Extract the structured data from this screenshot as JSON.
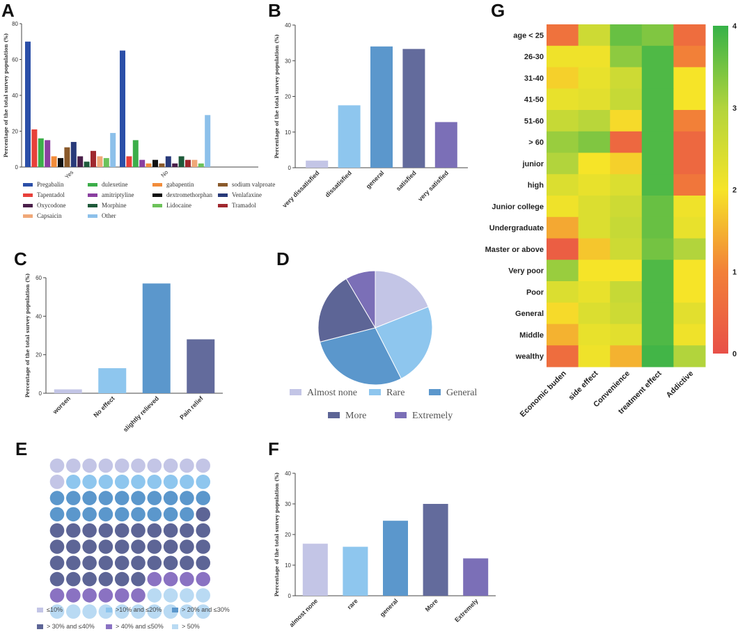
{
  "panels": {
    "A": "A",
    "B": "B",
    "C": "C",
    "D": "D",
    "E": "E",
    "F": "F",
    "G": "G"
  },
  "chart_data": [
    {
      "id": "A",
      "type": "bar",
      "ylabel": "Percentage of the total survey population (%)",
      "ylim": [
        0,
        80
      ],
      "yticks": [
        0,
        20,
        40,
        60,
        80
      ],
      "categories": [
        "Yes",
        "No"
      ],
      "series": [
        {
          "name": "Pregabalin",
          "color": "#2b4fa8",
          "values": [
            70,
            65
          ]
        },
        {
          "name": "Tapentadol",
          "color": "#e8403a",
          "values": [
            21,
            6
          ]
        },
        {
          "name": "dulexetine",
          "color": "#3cae4a",
          "values": [
            16,
            15
          ]
        },
        {
          "name": "amitriptyline",
          "color": "#8a3fa0",
          "values": [
            15,
            4
          ]
        },
        {
          "name": "gabapentin",
          "color": "#f28c3a",
          "values": [
            6,
            2
          ]
        },
        {
          "name": "dextromethorphan",
          "color": "#111111",
          "values": [
            5,
            4
          ]
        },
        {
          "name": "sodium valproate",
          "color": "#8a5a2b",
          "values": [
            11,
            2
          ]
        },
        {
          "name": "Venlafaxine",
          "color": "#283a7a",
          "values": [
            14,
            6
          ]
        },
        {
          "name": "Oxycodone",
          "color": "#4a1f4a",
          "values": [
            6,
            2
          ]
        },
        {
          "name": "Morphine",
          "color": "#1e5a3a",
          "values": [
            3,
            6
          ]
        },
        {
          "name": "Tramadol",
          "color": "#a0282e",
          "values": [
            9,
            4
          ]
        },
        {
          "name": "Capsaicin",
          "color": "#f0a878",
          "values": [
            6,
            4
          ]
        },
        {
          "name": "Lidocaine",
          "color": "#6cc25a",
          "values": [
            5,
            2
          ]
        },
        {
          "name": "Other",
          "color": "#8cc0ea",
          "values": [
            19,
            29
          ]
        }
      ],
      "legend_order": [
        "Pregabalin",
        "dulexetine",
        "gabapentin",
        "sodium valproate",
        "Tapentadol",
        "amitriptyline",
        "dextromethorphan",
        "Venlafaxine",
        "Oxycodone",
        "Morphine",
        "Lidocaine",
        "Tramadol",
        "Capsaicin",
        "Other"
      ]
    },
    {
      "id": "B",
      "type": "bar",
      "ylabel": "Percentage of the total survey population (%)",
      "ylim": [
        0,
        40
      ],
      "yticks": [
        0,
        10,
        20,
        30,
        40
      ],
      "categories": [
        "very dissatisfied",
        "dissatisfied",
        "general",
        "satisfied",
        "very satisfied"
      ],
      "values": [
        2,
        17.5,
        34,
        33.3,
        12.8
      ],
      "colors": [
        "#c3c5e6",
        "#8ec6ee",
        "#5b97cc",
        "#636b9c",
        "#7b6fb7"
      ]
    },
    {
      "id": "C",
      "type": "bar",
      "ylabel": "Percentage of the total survey population (%)",
      "ylim": [
        0,
        60
      ],
      "yticks": [
        0,
        20,
        40,
        60
      ],
      "categories": [
        "worsen",
        "No effect",
        "slightly relieved",
        "Pain relief"
      ],
      "values": [
        2,
        13,
        57,
        28
      ],
      "colors": [
        "#c3c5e6",
        "#8ec6ee",
        "#5b97cc",
        "#636b9c"
      ]
    },
    {
      "id": "D",
      "type": "pie",
      "labels": [
        "Almost none",
        "Rare",
        "General",
        "More",
        "Extremely"
      ],
      "values": [
        19,
        23.5,
        28.5,
        20.5,
        8.5
      ],
      "colors": [
        "#c3c5e6",
        "#8ec6ee",
        "#5b97cc",
        "#5d6596",
        "#7b6fb7"
      ]
    },
    {
      "id": "E",
      "type": "waffle",
      "labels": [
        "≤10%",
        ">10% and ≤20%",
        "> 20% and ≤30%",
        "> 30% and ≤40%",
        "> 40% and ≤50%",
        "> 50%"
      ],
      "values": [
        11,
        9,
        19,
        37,
        10,
        14
      ],
      "colors": [
        "#c3c5e6",
        "#8ec6ee",
        "#5b97cc",
        "#5d6596",
        "#8a72c2",
        "#b9daf3"
      ]
    },
    {
      "id": "F",
      "type": "bar",
      "ylabel": "Percentage of the total survey population (%)",
      "ylim": [
        0,
        40
      ],
      "yticks": [
        0,
        10,
        20,
        30,
        40
      ],
      "categories": [
        "almost none",
        "rare",
        "general",
        "More",
        "Extremely"
      ],
      "values": [
        17,
        16,
        24.5,
        30,
        12.2
      ],
      "colors": [
        "#c3c5e6",
        "#8ec6ee",
        "#5b97cc",
        "#636b9c",
        "#7b6fb7"
      ]
    },
    {
      "id": "G",
      "type": "heatmap",
      "rows": [
        "age < 25",
        "26-30",
        "31-40",
        "41-50",
        "51-60",
        "> 60",
        "junior",
        "high",
        "Junior college",
        "Undergraduate",
        "Master or above",
        "Very poor",
        "Poor",
        "General",
        "Middle",
        "wealthy"
      ],
      "columns": [
        "Economic buden",
        "side effect",
        "Convenience",
        "treatment effect",
        "Addictive"
      ],
      "values": [
        [
          0.7,
          2.6,
          3.6,
          3.4,
          0.6
        ],
        [
          2.1,
          2.1,
          3.3,
          3.8,
          1.0
        ],
        [
          1.8,
          2.2,
          2.6,
          3.8,
          2.0
        ],
        [
          2.2,
          2.3,
          2.7,
          3.8,
          2.0
        ],
        [
          2.7,
          2.9,
          1.9,
          3.8,
          1.0
        ],
        [
          3.2,
          3.4,
          0.5,
          3.8,
          0.5
        ],
        [
          3.0,
          2.0,
          1.8,
          3.8,
          0.5
        ],
        [
          2.4,
          2.2,
          2.4,
          3.8,
          0.8
        ],
        [
          2.1,
          2.4,
          2.6,
          3.6,
          2.1
        ],
        [
          1.4,
          2.4,
          2.7,
          3.6,
          2.2
        ],
        [
          0.3,
          1.7,
          2.6,
          3.5,
          3.0
        ],
        [
          3.2,
          2.0,
          2.0,
          3.8,
          2.0
        ],
        [
          2.4,
          2.2,
          2.7,
          3.8,
          2.0
        ],
        [
          1.9,
          2.4,
          2.6,
          3.8,
          2.3
        ],
        [
          1.5,
          2.2,
          2.3,
          3.8,
          2.1
        ],
        [
          0.6,
          2.1,
          1.5,
          3.9,
          3.0
        ]
      ],
      "vmin": 0,
      "vmax": 4,
      "colorbar_ticks": [
        0,
        1,
        2,
        3,
        4
      ]
    }
  ]
}
